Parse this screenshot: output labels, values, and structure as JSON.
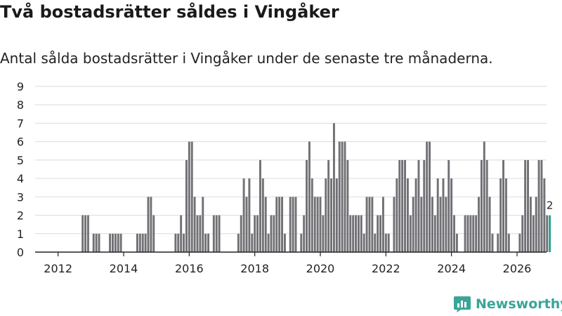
{
  "header": {
    "title": "Två bostadsrätter såldes i Vingåker",
    "subtitle": "Antal sålda bostadsrätter i Vingåker under de senaste tre månaderna."
  },
  "brand": {
    "name": "Newsworthy",
    "color": "#3aa497"
  },
  "chart_data": {
    "type": "bar",
    "title": "Två bostadsrätter såldes i Vingåker",
    "subtitle": "Antal sålda bostadsrätter i Vingåker under de senaste tre månaderna.",
    "xlabel": "",
    "ylabel": "",
    "ylim": [
      0,
      9
    ],
    "yticks": [
      0,
      1,
      2,
      3,
      4,
      5,
      6,
      7,
      8,
      9
    ],
    "xlim": [
      2011.3,
      2026.9
    ],
    "xticks": [
      2012,
      2014,
      2016,
      2018,
      2020,
      2022,
      2024,
      2026
    ],
    "grid": true,
    "bar_color": "#707075",
    "highlight_color": "#2a9d8f",
    "period": "monthly, rolling three-month sum",
    "x_start": 2012.0,
    "x_step": 0.08333,
    "values": [
      0,
      0,
      0,
      0,
      0,
      0,
      0,
      0,
      0,
      2,
      2,
      2,
      0,
      1,
      1,
      1,
      0,
      0,
      0,
      1,
      1,
      1,
      1,
      1,
      0,
      0,
      0,
      0,
      0,
      1,
      1,
      1,
      1,
      3,
      3,
      2,
      0,
      0,
      0,
      0,
      0,
      0,
      0,
      1,
      1,
      2,
      1,
      5,
      6,
      6,
      3,
      2,
      2,
      3,
      1,
      1,
      0,
      2,
      2,
      2,
      0,
      0,
      0,
      0,
      0,
      0,
      1,
      2,
      4,
      3,
      4,
      1,
      2,
      2,
      5,
      4,
      3,
      1,
      2,
      2,
      3,
      3,
      3,
      1,
      0,
      3,
      3,
      3,
      0,
      1,
      2,
      5,
      6,
      4,
      3,
      3,
      3,
      2,
      4,
      5,
      4,
      7,
      4,
      6,
      6,
      6,
      5,
      2,
      2,
      2,
      2,
      2,
      1,
      3,
      3,
      3,
      1,
      2,
      2,
      3,
      1,
      1,
      0,
      3,
      4,
      5,
      5,
      5,
      4,
      2,
      3,
      4,
      5,
      3,
      5,
      6,
      6,
      3,
      2,
      4,
      3,
      4,
      3,
      5,
      4,
      2,
      1,
      0,
      0,
      2,
      2,
      2,
      2,
      2,
      3,
      5,
      6,
      5,
      3,
      1,
      0,
      1,
      4,
      5,
      4,
      1,
      0,
      0,
      0,
      1,
      2,
      5,
      5,
      3,
      2,
      3,
      5,
      5,
      4,
      2
    ],
    "highlighted_last": {
      "value": 2,
      "label": "2"
    }
  }
}
